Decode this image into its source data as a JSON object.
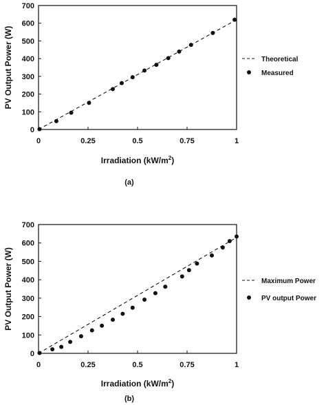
{
  "chart_data": [
    {
      "type": "scatter",
      "caption": "(a)",
      "xlabel": "Irradiation (kW/m",
      "xlabel_sup": "2",
      "xlabel_close": ")",
      "ylabel": "PV Output Power (W)",
      "xlim": [
        0,
        1
      ],
      "ylim": [
        0,
        700
      ],
      "xticks": [
        0,
        0.25,
        0.5,
        0.75,
        1
      ],
      "xtick_labels": [
        "0",
        "0.25",
        "0.5",
        "0.75",
        "1"
      ],
      "yticks": [
        0,
        100,
        200,
        300,
        400,
        500,
        600,
        700
      ],
      "ytick_labels": [
        "0",
        "100",
        "200",
        "300",
        "400",
        "500",
        "600",
        "700"
      ],
      "grid": false,
      "legend_position": "right",
      "series": [
        {
          "name": "Theoretical",
          "style": "dashed-line",
          "x": [
            0,
            1
          ],
          "y": [
            0,
            620
          ]
        },
        {
          "name": "Measured",
          "style": "dots",
          "x": [
            0.005,
            0.09,
            0.165,
            0.255,
            0.375,
            0.42,
            0.475,
            0.535,
            0.595,
            0.655,
            0.71,
            0.77,
            0.88,
            0.99
          ],
          "y": [
            2,
            47,
            95,
            150,
            228,
            262,
            295,
            333,
            365,
            403,
            440,
            478,
            545,
            620
          ]
        }
      ]
    },
    {
      "type": "scatter",
      "caption": "(b)",
      "xlabel": "Irradiation (kW/m",
      "xlabel_sup": "2",
      "xlabel_close": ")",
      "ylabel": "PV Output Power (W)",
      "xlim": [
        0,
        1
      ],
      "ylim": [
        0,
        700
      ],
      "xticks": [
        0,
        0.25,
        0.5,
        0.75,
        1
      ],
      "xtick_labels": [
        "0",
        "0.25",
        "0.5",
        "0.75",
        "1"
      ],
      "yticks": [
        0,
        100,
        200,
        300,
        400,
        500,
        600,
        700
      ],
      "ytick_labels": [
        "0",
        "100",
        "200",
        "300",
        "400",
        "500",
        "600",
        "700"
      ],
      "grid": false,
      "legend_position": "right",
      "series": [
        {
          "name": "Maximum Power",
          "style": "dashed-line",
          "x": [
            0,
            1
          ],
          "y": [
            0,
            630
          ]
        },
        {
          "name": "PV output Power",
          "style": "dots",
          "x": [
            0.005,
            0.07,
            0.115,
            0.16,
            0.215,
            0.27,
            0.32,
            0.375,
            0.425,
            0.475,
            0.535,
            0.59,
            0.64,
            0.725,
            0.76,
            0.8,
            0.875,
            0.93,
            0.965,
            1.0
          ],
          "y": [
            2,
            22,
            35,
            62,
            93,
            125,
            150,
            183,
            215,
            248,
            292,
            327,
            362,
            418,
            452,
            488,
            532,
            575,
            610,
            635
          ]
        }
      ]
    }
  ]
}
